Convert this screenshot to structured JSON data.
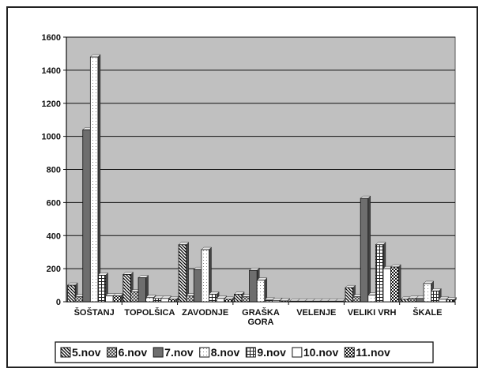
{
  "chart_data": {
    "type": "bar",
    "categories": [
      "ŠOŠTANJ",
      "TOPOLŠICA",
      "ZAVODNJE",
      "GRAŠKA GORA",
      "VELENJE",
      "VELIKI VRH",
      "ŠKALE"
    ],
    "category_lines": [
      [
        "ŠOŠTANJ"
      ],
      [
        "TOPOLŠICA"
      ],
      [
        "ZAVODNJE"
      ],
      [
        "GRAŠKA",
        "GORA"
      ],
      [
        "VELENJE"
      ],
      [
        "VELIKI VRH"
      ],
      [
        "ŠKALE"
      ]
    ],
    "series": [
      {
        "name": "5.nov",
        "pattern": "diag-down",
        "values": [
          100,
          165,
          345,
          45,
          3,
          85,
          15
        ]
      },
      {
        "name": "6.nov",
        "pattern": "cross-diag",
        "values": [
          30,
          60,
          35,
          30,
          3,
          30,
          20
        ]
      },
      {
        "name": "7.nov",
        "pattern": "solid-gray",
        "values": [
          1040,
          145,
          195,
          190,
          3,
          625,
          20
        ]
      },
      {
        "name": "8.nov",
        "pattern": "dotted-light",
        "values": [
          1480,
          25,
          315,
          130,
          3,
          40,
          110
        ]
      },
      {
        "name": "9.nov",
        "pattern": "grid",
        "values": [
          160,
          20,
          45,
          10,
          3,
          345,
          65
        ]
      },
      {
        "name": "10.nov",
        "pattern": "white",
        "values": [
          35,
          20,
          20,
          8,
          3,
          200,
          15
        ]
      },
      {
        "name": "11.nov",
        "pattern": "checker",
        "values": [
          35,
          15,
          15,
          5,
          3,
          210,
          12
        ]
      }
    ],
    "ylim": [
      0,
      1600
    ],
    "yticks": [
      0,
      200,
      400,
      600,
      800,
      1000,
      1200,
      1400,
      1600
    ],
    "grid": true,
    "legend_position": "bottom",
    "plot_background": "#c0c0c0"
  }
}
